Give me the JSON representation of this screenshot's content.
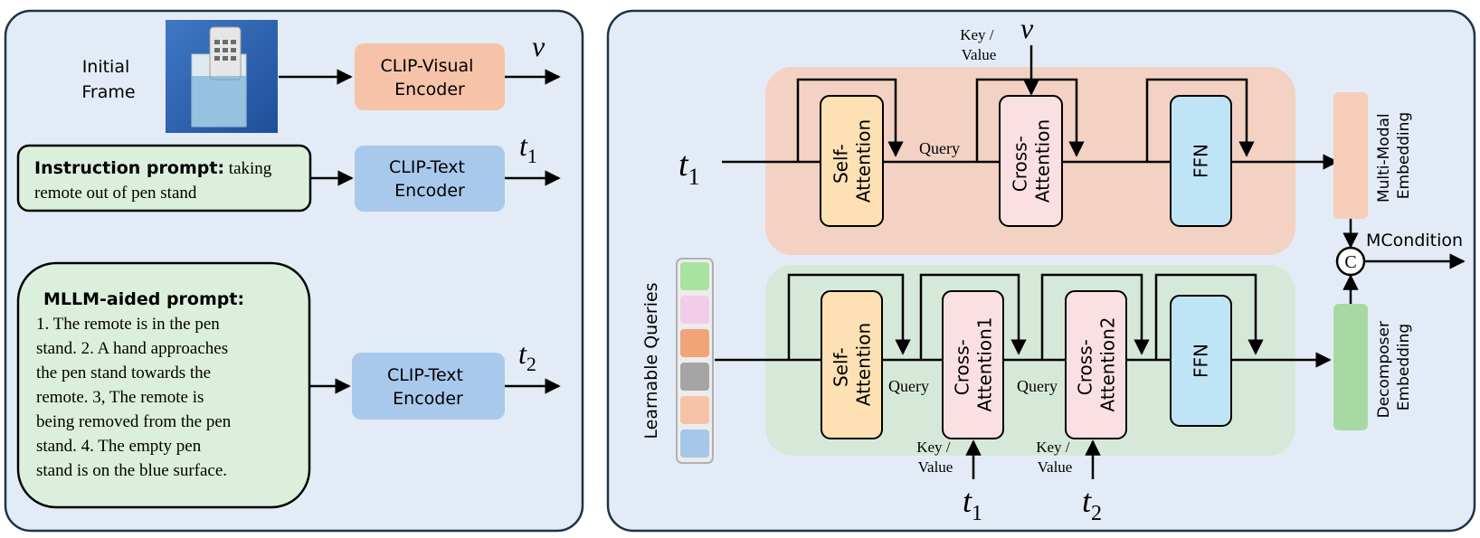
{
  "left_panel": {
    "initial_frame_label": [
      "Initial",
      "Frame"
    ],
    "clip_visual": [
      "CLIP-Visual",
      "Encoder"
    ],
    "v_symbol": "v",
    "instruction": {
      "label": "Instruction prompt:",
      "text_line1": " taking",
      "text_line2": "remote out of pen stand"
    },
    "clip_text_1": [
      "CLIP-Text",
      "Encoder"
    ],
    "t1_symbol": "t",
    "t1_sub": "1",
    "mllm": {
      "label": "MLLM-aided prompt:",
      "lines": [
        "1. The remote is in the pen",
        "stand. 2. A hand approaches",
        "the pen stand towards the",
        "remote. 3, The remote is",
        "being removed from the pen",
        "stand. 4. The empty pen",
        "stand is on the blue surface."
      ]
    },
    "clip_text_2": [
      "CLIP-Text",
      "Encoder"
    ],
    "t2_symbol": "t",
    "t2_sub": "2"
  },
  "right_panel": {
    "key_value": [
      "Key /",
      "Value"
    ],
    "query": "Query",
    "self_attention": [
      "Self-",
      "Attention"
    ],
    "cross_attention": [
      "Cross-",
      "Attention"
    ],
    "cross_attention1": [
      "Cross-",
      "Attention1"
    ],
    "cross_attention2": [
      "Cross-",
      "Attention2"
    ],
    "ffn": "FFN",
    "multimodal_embedding": [
      "Multi-Modal",
      "Embedding"
    ],
    "decomposer_embedding": [
      "Decomposer",
      "Embedding"
    ],
    "mcondition": "MCondition",
    "concat_symbol": "C",
    "learnable_queries": "Learnable Queries",
    "v_symbol": "v",
    "t_symbol": "t",
    "sub1": "1",
    "sub2": "2"
  },
  "colors": {
    "panel_bg": "#e3ecf6",
    "orange_block": "#f7c3a8",
    "blue_block": "#a9c9ec",
    "green_box": "#dcefdc",
    "top_group": "#f3d2c4",
    "bottom_group": "#d6e9d8",
    "self_attn": "#fde0b3",
    "cross_attn": "#fbe0e3",
    "ffn": "#bfe4f5",
    "mm_embed": "#f5cdb9",
    "dec_embed": "#a9d9a3",
    "query_colors": [
      "#a9e3a0",
      "#f1cdea",
      "#f0a478",
      "#a5a5a5",
      "#f6c3a6",
      "#a7c7ea"
    ]
  }
}
